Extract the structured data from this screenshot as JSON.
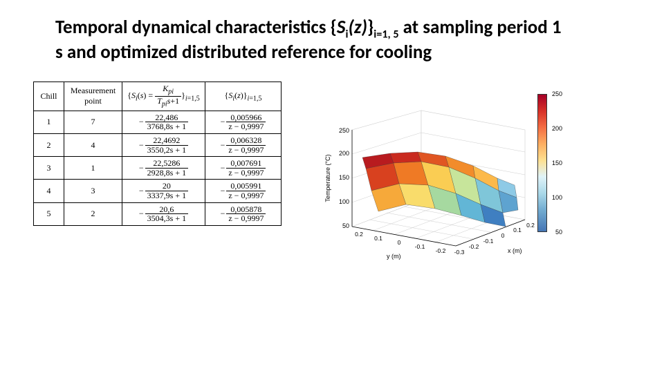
{
  "title": {
    "pre": "Temporal dynamical characteristics {",
    "S": "S",
    "i": "i",
    "z": "(z)",
    "post_brace": "}",
    "sub": "i=1, 5",
    "after": " at sampling period 1 s and optimized distributed reference for cooling",
    "fontsize": 27,
    "color": "#000000"
  },
  "table": {
    "headers": {
      "chill": "Chill",
      "mp_line1": "Measurement",
      "mp_line2": "point",
      "s_formula": "{Sᵢ(s) = K_pi / (T_pi s + 1)}_{i=1,5}",
      "z_formula": "{Sᵢ(z)}_{i=1,5}"
    },
    "rows": [
      {
        "chill": "1",
        "mp": "7",
        "s_num": "22,486",
        "s_den": "3768,8s + 1",
        "z_num": "0,005966",
        "z_den": "z − 0,9997"
      },
      {
        "chill": "2",
        "mp": "4",
        "s_num": "22,4692",
        "s_den": "3550,2s + 1",
        "z_num": "0,006328",
        "z_den": "z − 0,9997"
      },
      {
        "chill": "3",
        "mp": "1",
        "s_num": "22,5286",
        "s_den": "2928,8s + 1",
        "z_num": "0,007691",
        "z_den": "z − 0,9997"
      },
      {
        "chill": "4",
        "mp": "3",
        "s_num": "20",
        "s_den": "3337,9s + 1",
        "z_num": "0,005991",
        "z_den": "z − 0,9997"
      },
      {
        "chill": "5",
        "mp": "2",
        "s_num": "20,6",
        "s_den": "3504,3s + 1",
        "z_num": "0,005878",
        "z_den": "z − 0,9997"
      }
    ],
    "font_family": "Times New Roman",
    "font_size": 12,
    "border_color": "#000000"
  },
  "plot": {
    "type": "surface3d",
    "zlabel": "Temperature (°C)",
    "xlabel": "x (m)",
    "ylabel": "y (m)",
    "x_range": [
      -0.3,
      0.2
    ],
    "y_range": [
      -0.2,
      0.2
    ],
    "z_range": [
      50,
      250
    ],
    "x_ticks": [
      "-0.3",
      "-0.2",
      "-0.1",
      "0",
      "0.1",
      "0.2"
    ],
    "y_ticks": [
      "-0.2",
      "-0.1",
      "0",
      "0.1",
      "0.2"
    ],
    "z_ticks": [
      "50",
      "100",
      "150",
      "200",
      "250"
    ],
    "colorbar_ticks": [
      "250",
      "200",
      "150",
      "100",
      "50"
    ],
    "colormap": [
      "#a50026",
      "#d73027",
      "#f46d43",
      "#fdae61",
      "#fee090",
      "#e0f3f8",
      "#abd9e9",
      "#74add1",
      "#4575b4"
    ],
    "tick_fontsize": 9,
    "label_fontsize": 9,
    "background_color": "#ffffff",
    "grid_color": "#cccccc"
  }
}
